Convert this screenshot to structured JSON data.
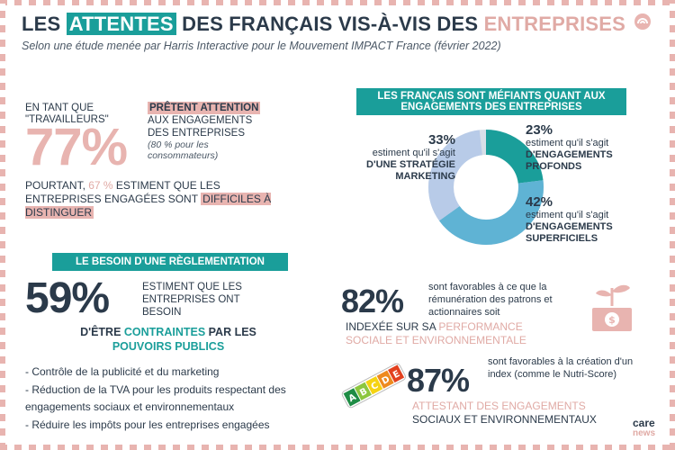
{
  "header": {
    "title_pre": "LES ",
    "title_hl": "ATTENTES",
    "title_mid": " DES FRANÇAIS VIS-À-VIS DES ",
    "title_pink": "ENTREPRISES",
    "subtitle": "Selon une étude menée par Harris Interactive pour le Mouvement IMPACT France (février 2022)"
  },
  "block77": {
    "workers": "EN TANT QUE \"TRAVAILLEURS\"",
    "value": "77%",
    "hl": "PRÊTENT ATTENTION",
    "line1": "AUX ENGAGEMENTS",
    "line2": "DES ENTREPRISES",
    "note": "(80 % pour les consommateurs)",
    "pourtant_1": "POURTANT, ",
    "pourtant_pct": "67 %",
    "pourtant_2": " ESTIMENT QUE LES ENTREPRISES ENGAGÉES SONT ",
    "pourtant_hl": "DIFFICILES À DISTINGUER"
  },
  "donut_section": {
    "header": "LES FRANÇAIS SONT MÉFIANTS QUANT AUX ENGAGEMENTS DES ENTREPRISES",
    "slices": [
      {
        "pct": "23%",
        "value": 23,
        "text": "estiment qu'il s'agit",
        "bold": "D'ENGAGEMENTS PROFONDS",
        "color": "#1a9e9a"
      },
      {
        "pct": "42%",
        "value": 42,
        "text": "estiment qu'il s'agit",
        "bold": "D'ENGAGEMENTS SUPERFICIELS",
        "color": "#5fb3d4"
      },
      {
        "pct": "33%",
        "value": 33,
        "text": "estiment qu'il s'agit",
        "bold": "D'UNE STRATÉGIE MARKETING",
        "color": "#b8cbe8"
      }
    ],
    "remainder_color": "#d8dfe8"
  },
  "block59": {
    "header": "LE BESOIN D'UNE RÈGLEMENTATION",
    "value": "59%",
    "text": "ESTIMENT QUE LES ENTREPRISES ONT BESOIN",
    "pre": "D'ÊTRE ",
    "teal1": "CONTRAINTES",
    "mid": " PAR LES ",
    "teal2": "POUVOIRS PUBLICS",
    "bullets": [
      "Contrôle de la publicité et du marketing",
      "Réduction de la TVA pour les produits respectant des engagements sociaux et environnementaux",
      "Réduire les impôts pour les entreprises engagées"
    ]
  },
  "block82": {
    "value": "82%",
    "text": "sont favorables à ce que la rémunération des patrons et actionnaires soit",
    "bold": "INDEXÉE SUR SA ",
    "pink": "PERFORMANCE SOCIALE ET ENVIRONNEMENTALE"
  },
  "block87": {
    "value": "87%",
    "text": "sont favorables à la création d'un index (comme le Nutri-Score)",
    "pink": "ATTESTANT DES ENGAGEMENTS",
    "rest": "SOCIAUX ET ENVIRONNEMENTAUX",
    "nutri_letters": [
      "A",
      "B",
      "C",
      "D",
      "E"
    ]
  },
  "brand": {
    "care": "care",
    "news": "news"
  }
}
